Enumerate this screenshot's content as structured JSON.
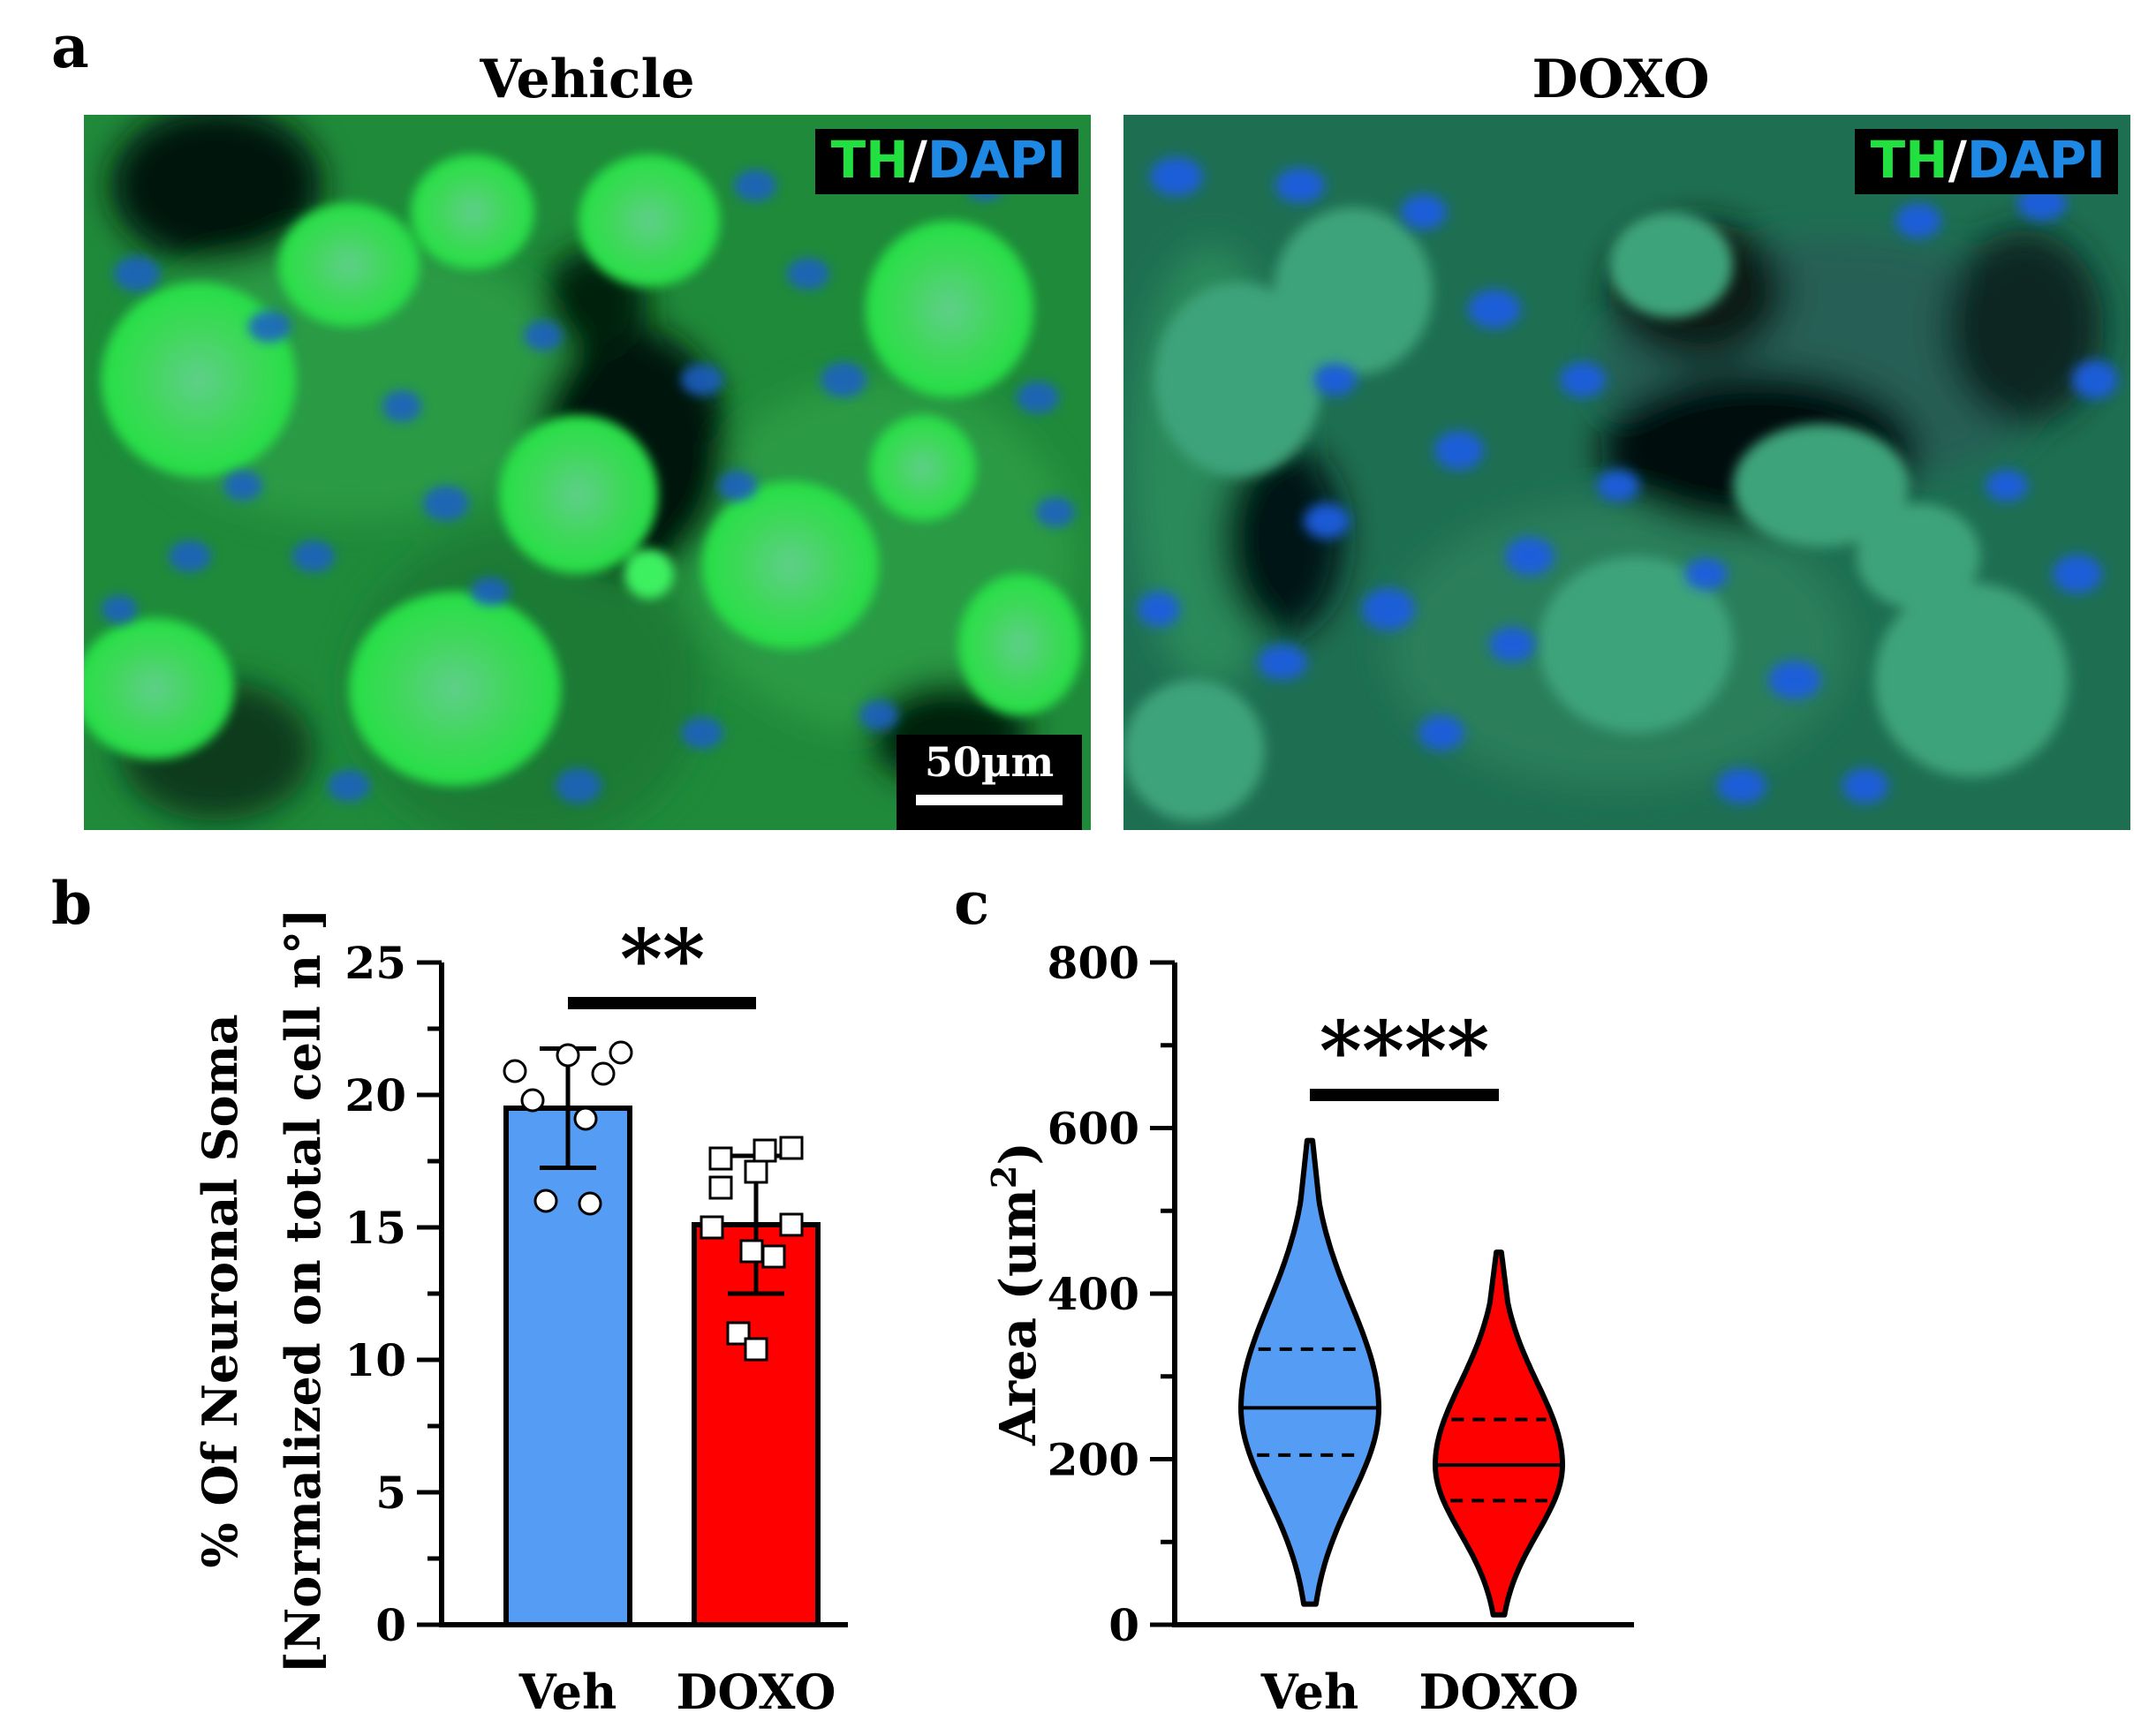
{
  "panels": {
    "a": {
      "letter": "a",
      "left_title": "Vehicle",
      "right_title": "DOXO",
      "stain_th": "TH",
      "stain_sep": "/",
      "stain_dapi": "DAPI",
      "scalebar": "50µm",
      "colors": {
        "th": "#22e040",
        "dapi": "#1e88e5"
      }
    },
    "b": {
      "letter": "b"
    },
    "c": {
      "letter": "c"
    }
  },
  "chart_data": [
    {
      "panel": "b",
      "type": "bar",
      "categories": [
        "Veh",
        "DOXO"
      ],
      "values": [
        19.5,
        15.1
      ],
      "error": [
        2.25,
        2.6
      ],
      "colors": [
        "#559cf5",
        "#ff0000"
      ],
      "points": [
        [
          20.9,
          21.5,
          21.6,
          20.8,
          19.8,
          19.1,
          16.0,
          15.9
        ],
        [
          17.6,
          17.9,
          18.0,
          16.5,
          17.1,
          15.1,
          15.0,
          14.1,
          13.9,
          11.0,
          10.4
        ]
      ],
      "marker": [
        "circle",
        "square"
      ],
      "ylabel_line1": "% Of Neuronal  Soma",
      "ylabel_line2": "[Normalized on total cell n°]",
      "ylim": [
        0,
        25
      ],
      "yticks": [
        "0",
        "5",
        "10",
        "15",
        "20",
        "25"
      ],
      "significance": "**"
    },
    {
      "panel": "c",
      "type": "violin",
      "categories": [
        "Veh",
        "DOXO"
      ],
      "colors": [
        "#559cf5",
        "#ff0000"
      ],
      "ylabel": "Area (um",
      "ylabel_sup": "2",
      "ylabel_close": ")",
      "ylim": [
        0,
        800
      ],
      "yticks": [
        "0",
        "200",
        "400",
        "600",
        "800"
      ],
      "median": [
        262,
        193
      ],
      "quartiles": [
        [
          205,
          333
        ],
        [
          150,
          248
        ]
      ],
      "range": [
        [
          25,
          585
        ],
        [
          12,
          450
        ]
      ],
      "significance": "****"
    }
  ]
}
